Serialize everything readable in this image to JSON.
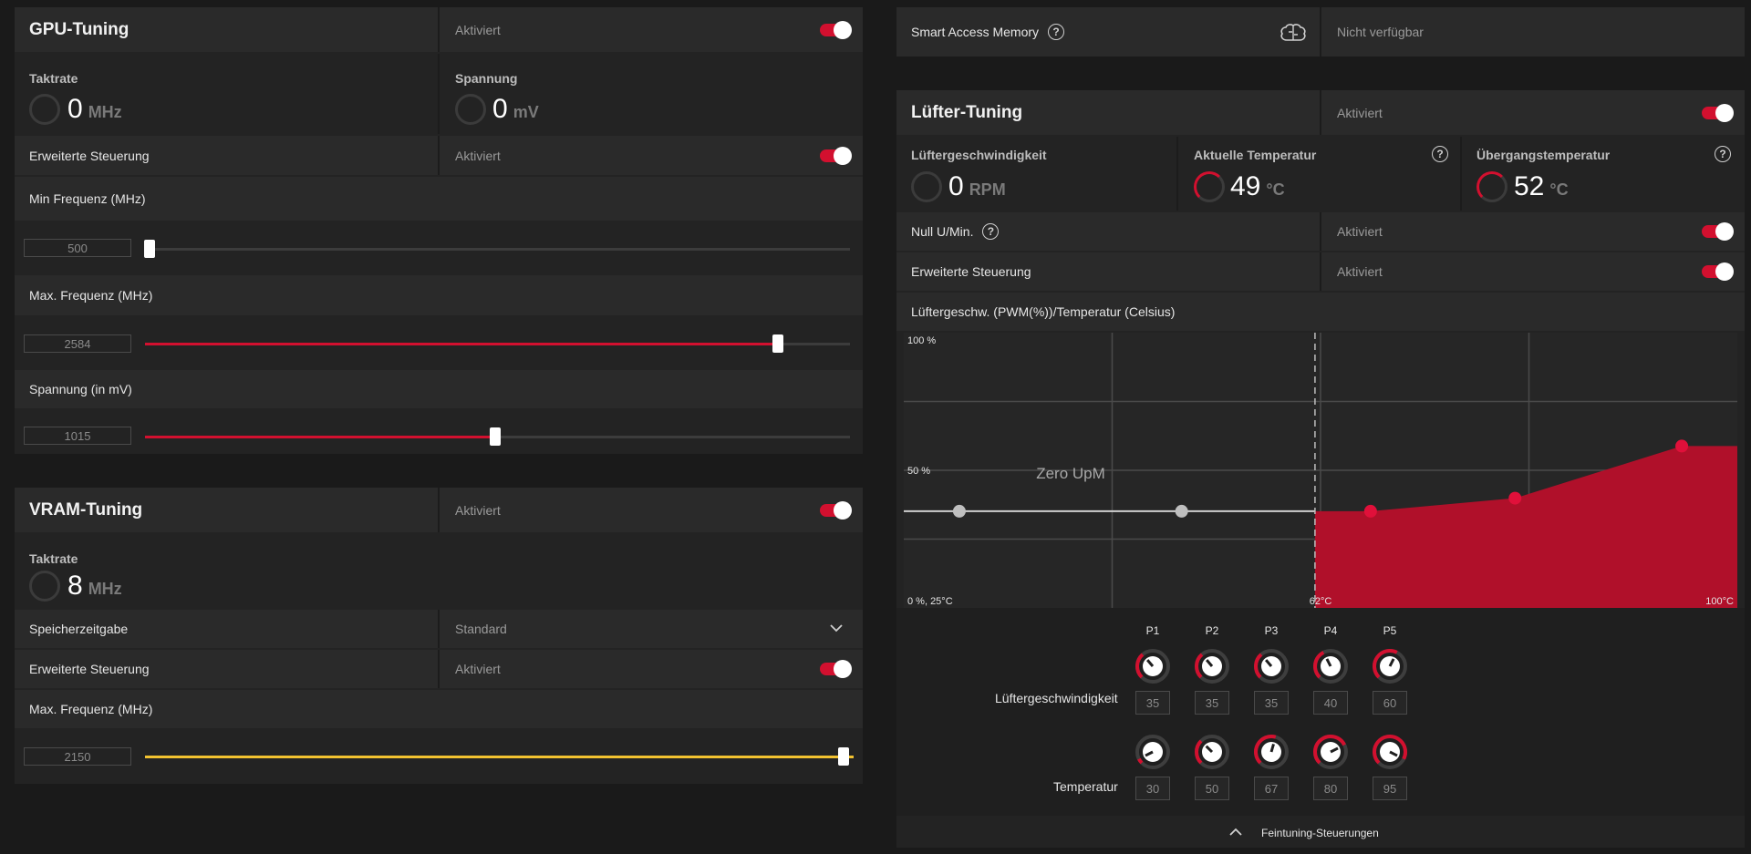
{
  "gpu": {
    "title": "GPU-Tuning",
    "status": "Aktiviert",
    "clock_label": "Taktrate",
    "clock_value": "0",
    "clock_unit": "MHz",
    "voltage_label": "Spannung",
    "voltage_value": "0",
    "voltage_unit": "mV",
    "advanced_label": "Erweiterte Steuerung",
    "advanced_status": "Aktiviert",
    "min_freq_label": "Min Frequenz (MHz)",
    "min_freq_value": "500",
    "max_freq_label": "Max. Frequenz (MHz)",
    "max_freq_value": "2584",
    "volt_label": "Spannung (in mV)",
    "volt_value": "1015"
  },
  "vram": {
    "title": "VRAM-Tuning",
    "status": "Aktiviert",
    "clock_label": "Taktrate",
    "clock_value": "8",
    "clock_unit": "MHz",
    "timing_label": "Speicherzeitgabe",
    "timing_value": "Standard",
    "advanced_label": "Erweiterte Steuerung",
    "advanced_status": "Aktiviert",
    "max_freq_label": "Max. Frequenz (MHz)",
    "max_freq_value": "2150"
  },
  "sam": {
    "label": "Smart Access Memory",
    "status": "Nicht verfügbar",
    "icon": "brain-icon"
  },
  "fan": {
    "title": "Lüfter-Tuning",
    "status": "Aktiviert",
    "speed_label": "Lüftergeschwindigkeit",
    "speed_value": "0",
    "speed_unit": "RPM",
    "temp_label": "Aktuelle Temperatur",
    "temp_value": "49",
    "temp_unit": "°C",
    "junction_label": "Übergangstemperatur",
    "junction_value": "52",
    "junction_unit": "°C",
    "zero_label": "Null U/Min.",
    "zero_status": "Aktiviert",
    "advanced_label": "Erweiterte Steuerung",
    "advanced_status": "Aktiviert",
    "curve_label": "Lüftergeschw. (PWM(%))/Temperatur (Celsius)",
    "speed_row_label": "Lüftergeschwindigkeit",
    "temp_row_label": "Temperatur",
    "fine_tune_label": "Feintuning-Steuerungen"
  },
  "chart_data": {
    "type": "area",
    "y_top_label": "100 %",
    "y_mid_label": "50 %",
    "origin_label": "0 %, 25°C",
    "x_mid_label": "62°C",
    "x_end_label": "100°C",
    "zero_zone_label": "Zero UpM",
    "xlim": [
      25,
      100
    ],
    "ylim": [
      0,
      100
    ],
    "zero_rpm_until": 62,
    "points": [
      {
        "name": "P1",
        "speed": 35,
        "temp": 30
      },
      {
        "name": "P2",
        "speed": 35,
        "temp": 50
      },
      {
        "name": "P3",
        "speed": 35,
        "temp": 67
      },
      {
        "name": "P4",
        "speed": 40,
        "temp": 80
      },
      {
        "name": "P5",
        "speed": 60,
        "temp": 95
      }
    ]
  },
  "colors": {
    "accent": "#d2102f",
    "vram_slider": "#f2c230"
  }
}
